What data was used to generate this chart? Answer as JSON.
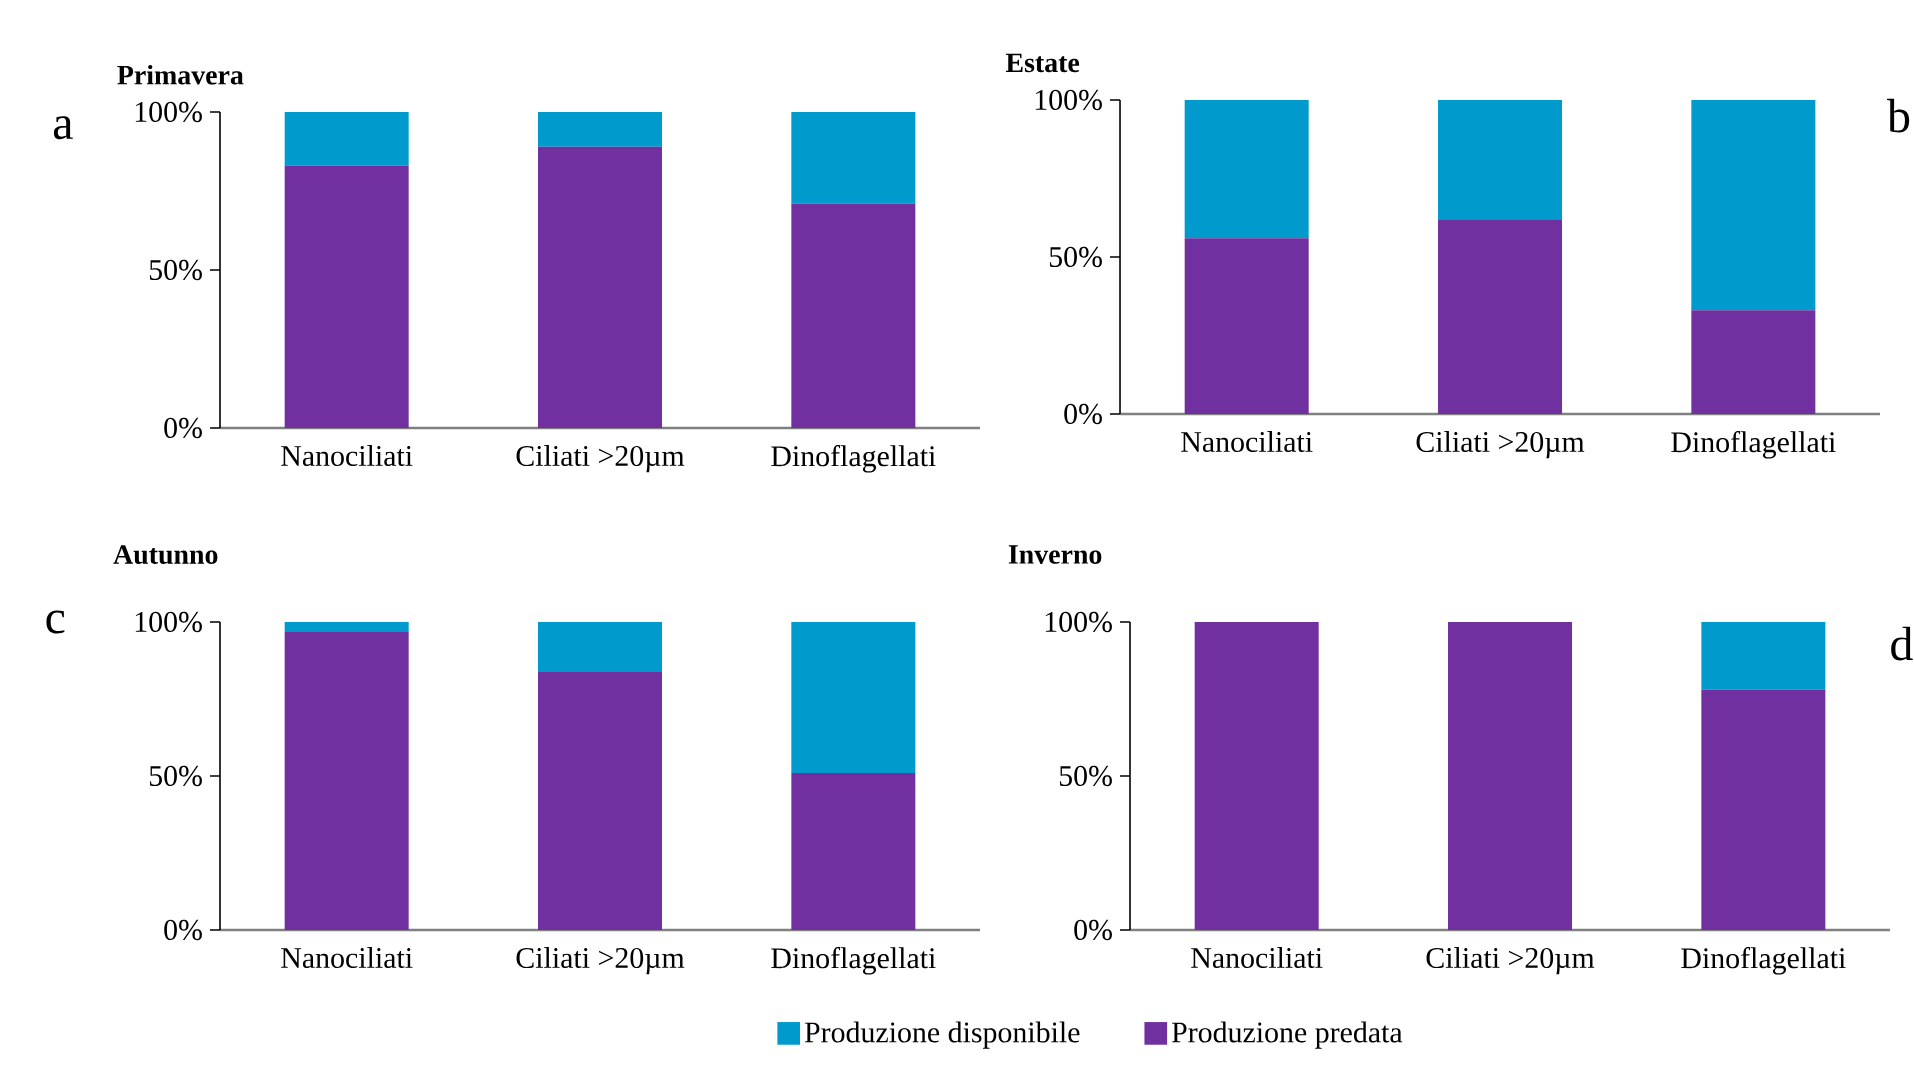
{
  "chart_data": [
    {
      "type": "bar",
      "title": "Primavera",
      "categories": [
        "Nanociliati",
        "Ciliati >20µm",
        "Dinoflagellati"
      ],
      "stacked": true,
      "series": [
        {
          "color": "#7030a0",
          "values": [
            83,
            89,
            71
          ]
        },
        {
          "color": "#009acd",
          "values": [
            17,
            11,
            29
          ]
        }
      ],
      "ylim": [
        0,
        100
      ],
      "yticks": [
        {
          "value": 0,
          "label": "0%"
        },
        {
          "value": 50,
          "label": "50%"
        },
        {
          "value": 100,
          "label": "100%"
        }
      ],
      "annotations": [
        "a"
      ]
    },
    {
      "type": "bar",
      "title": "Estate",
      "categories": [
        "Nanociliati",
        "Ciliati >20µm",
        "Dinoflagellati"
      ],
      "stacked": true,
      "series": [
        {
          "color": "#7030a0",
          "values": [
            56,
            62,
            33
          ]
        },
        {
          "color": "#009acd",
          "values": [
            44,
            38,
            67
          ]
        }
      ],
      "ylim": [
        0,
        100
      ],
      "yticks": [
        {
          "value": 0,
          "label": "0%"
        },
        {
          "value": 50,
          "label": "50%"
        },
        {
          "value": 100,
          "label": "100%"
        }
      ],
      "annotations": [
        "b"
      ]
    },
    {
      "type": "bar",
      "title": "Autunno",
      "categories": [
        "Nanociliati",
        "Ciliati >20µm",
        "Dinoflagellati"
      ],
      "stacked": true,
      "series": [
        {
          "color": "#7030a0",
          "values": [
            97,
            84,
            51
          ]
        },
        {
          "color": "#009acd",
          "values": [
            3,
            16,
            49
          ]
        }
      ],
      "ylim": [
        0,
        100
      ],
      "yticks": [
        {
          "value": 0,
          "label": "0%"
        },
        {
          "value": 50,
          "label": "50%"
        },
        {
          "value": 100,
          "label": "100%"
        }
      ],
      "annotations": [
        "c"
      ]
    },
    {
      "type": "bar",
      "title": "Inverno",
      "categories": [
        "Nanociliati",
        "Ciliati >20µm",
        "Dinoflagellati"
      ],
      "stacked": true,
      "series": [
        {
          "name": "Produzione predata",
          "color": "#7030a0",
          "values": [
            100,
            100,
            78
          ]
        },
        {
          "name": "Produzione disponibile",
          "color": "#009acd",
          "values": [
            0,
            0,
            22
          ]
        }
      ],
      "ylim": [
        0,
        100
      ],
      "yticks": [
        {
          "value": 0,
          "label": "0%"
        },
        {
          "value": 50,
          "label": "50%"
        },
        {
          "value": 100,
          "label": "100%"
        }
      ],
      "annotations": [
        "d"
      ],
      "legend": "bottom"
    }
  ]
}
